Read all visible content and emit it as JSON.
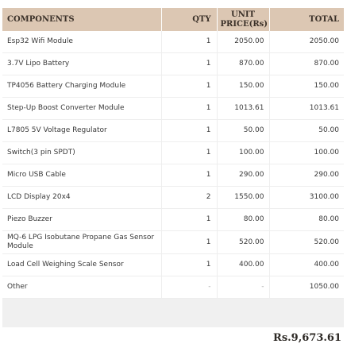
{
  "table": {
    "headers": {
      "components": "COMPONENTS",
      "qty": "QTY",
      "unit_price": "UNIT PRICE(Rs)",
      "total": "TOTAL"
    },
    "rows": [
      {
        "component": "Esp32 Wifi Module",
        "qty": "1",
        "unit_price": "2050.00",
        "total": "2050.00"
      },
      {
        "component": "3.7V Lipo Battery",
        "qty": "1",
        "unit_price": "870.00",
        "total": "870.00"
      },
      {
        "component": "TP4056 Battery Charging Module",
        "qty": "1",
        "unit_price": "150.00",
        "total": "150.00"
      },
      {
        "component": "Step-Up Boost Converter Module",
        "qty": "1",
        "unit_price": "1013.61",
        "total": "1013.61"
      },
      {
        "component": "L7805 5V Voltage Regulator",
        "qty": "1",
        "unit_price": "50.00",
        "total": "50.00"
      },
      {
        "component": "Switch(3 pin SPDT)",
        "qty": "1",
        "unit_price": "100.00",
        "total": "100.00"
      },
      {
        "component": "Micro USB Cable",
        "qty": "1",
        "unit_price": "290.00",
        "total": "290.00"
      },
      {
        "component": "LCD Display 20x4",
        "qty": "2",
        "unit_price": "1550.00",
        "total": "3100.00"
      },
      {
        "component": "Piezo Buzzer",
        "qty": "1",
        "unit_price": "80.00",
        "total": "80.00"
      },
      {
        "component": "MQ-6 LPG Isobutane Propane Gas Sensor Module",
        "qty": "1",
        "unit_price": "520.00",
        "total": "520.00"
      },
      {
        "component": "Load Cell Weighing Scale Sensor",
        "qty": "1",
        "unit_price": "400.00",
        "total": "400.00"
      },
      {
        "component": "Other",
        "qty": "-",
        "unit_price": "-",
        "total": "1050.00"
      }
    ]
  },
  "grand_total": "Rs.9,673.61",
  "colors": {
    "header_bg": "#dcc7b3",
    "footer_bg": "#f0f0f0"
  }
}
